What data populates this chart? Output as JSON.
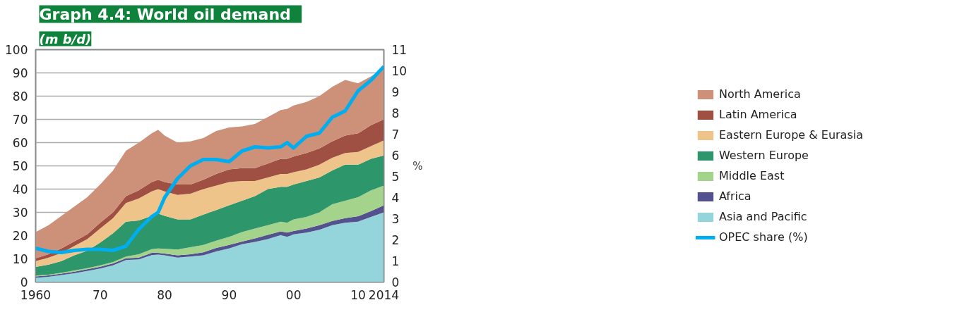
{
  "chart_data": {
    "type": "area",
    "stacked": true,
    "title": "Graph 4.4:   World oil demand",
    "subtitle": "(m b/d)",
    "y2label": "%",
    "x": [
      1960,
      1962,
      1964,
      1966,
      1968,
      1970,
      1972,
      1974,
      1976,
      1978,
      1979,
      1980,
      1982,
      1984,
      1986,
      1988,
      1990,
      1992,
      1994,
      1996,
      1998,
      1999,
      2000,
      2002,
      2004,
      2006,
      2008,
      2010,
      2012,
      2014
    ],
    "series": [
      {
        "name": "Asia and Pacific",
        "color": "#94d5db",
        "values": [
          1.8,
          2.3,
          3.0,
          3.8,
          4.8,
          5.8,
          7.2,
          9.5,
          9.8,
          11.6,
          11.8,
          11.5,
          10.5,
          11.0,
          11.5,
          13.2,
          14.5,
          16.3,
          17.3,
          18.5,
          20.2,
          19.5,
          20.5,
          21.3,
          22.5,
          24.5,
          25.5,
          26.0,
          28.0,
          30.0
        ]
      },
      {
        "name": "Africa",
        "color": "#54528e",
        "values": [
          0.6,
          0.6,
          0.6,
          0.7,
          0.7,
          0.8,
          0.8,
          0.7,
          0.7,
          1.0,
          0.8,
          0.8,
          1.0,
          1.0,
          1.3,
          1.5,
          1.5,
          1.1,
          1.5,
          1.8,
          1.6,
          1.8,
          1.5,
          1.7,
          2.0,
          1.8,
          2.0,
          2.3,
          2.5,
          3.0
        ]
      },
      {
        "name": "Middle East",
        "color": "#a4d48b",
        "values": [
          0.4,
          0.3,
          0.4,
          0.5,
          0.5,
          0.6,
          0.6,
          0.8,
          1.5,
          1.6,
          1.9,
          2.0,
          2.5,
          3.0,
          3.2,
          3.1,
          3.5,
          4.1,
          4.2,
          4.2,
          4.2,
          4.2,
          5.0,
          5.0,
          5.5,
          7.2,
          7.5,
          8.2,
          9.0,
          8.5
        ]
      },
      {
        "name": "Western Europe",
        "color": "#2e966b",
        "values": [
          3.7,
          4.3,
          5.0,
          6.5,
          7.5,
          9.8,
          12.4,
          15.0,
          14.5,
          14.3,
          15.0,
          14.2,
          13.0,
          12.0,
          13.0,
          13.2,
          13.5,
          13.5,
          14.0,
          15.5,
          15.0,
          15.5,
          15.0,
          15.5,
          15.0,
          14.5,
          15.5,
          14.0,
          13.5,
          13.0
        ]
      },
      {
        "name": "Eastern Europe & Eurasia",
        "color": "#eec48b",
        "values": [
          2.5,
          3.0,
          3.5,
          4.0,
          5.0,
          6.0,
          6.5,
          8.0,
          9.5,
          10.5,
          10.5,
          10.5,
          10.5,
          11.0,
          11.0,
          10.5,
          10.0,
          8.5,
          6.5,
          5.0,
          5.5,
          5.5,
          5.3,
          5.0,
          5.5,
          5.5,
          5.0,
          5.5,
          5.5,
          6.5
        ]
      },
      {
        "name": "Latin America",
        "color": "#a04f43",
        "values": [
          1.2,
          1.5,
          2.0,
          2.0,
          2.0,
          2.5,
          2.5,
          3.0,
          3.5,
          4.0,
          4.0,
          4.0,
          4.5,
          4.0,
          4.0,
          5.0,
          5.5,
          5.5,
          5.5,
          6.0,
          6.5,
          6.5,
          6.7,
          7.0,
          7.0,
          7.0,
          7.5,
          8.0,
          9.0,
          9.0
        ]
      },
      {
        "name": "North America",
        "color": "#cd917a",
        "values": [
          11.3,
          12.5,
          14.0,
          15.0,
          16.0,
          16.5,
          18.0,
          19.5,
          20.5,
          21.0,
          21.5,
          20.0,
          18.0,
          18.5,
          18.0,
          18.5,
          18.0,
          18.0,
          19.0,
          20.0,
          21.0,
          21.5,
          22.0,
          22.0,
          22.5,
          23.5,
          24.0,
          21.5,
          21.0,
          22.0
        ]
      },
      {
        "name": "OPEC share (%)",
        "type": "line",
        "axis": "y2",
        "color": "#00aeef",
        "values": [
          1.6,
          1.45,
          1.4,
          1.5,
          1.55,
          1.55,
          1.5,
          1.7,
          2.5,
          3.1,
          3.3,
          4.0,
          4.9,
          5.5,
          5.8,
          5.8,
          5.7,
          6.2,
          6.4,
          6.35,
          6.4,
          6.6,
          6.35,
          6.9,
          7.05,
          7.8,
          8.1,
          9.05,
          9.55,
          10.2
        ]
      }
    ],
    "xlim": [
      1960,
      2014
    ],
    "xticks": [
      {
        "value": 1960,
        "label": "1960"
      },
      {
        "value": 1970,
        "label": "70"
      },
      {
        "value": 1980,
        "label": "80"
      },
      {
        "value": 1990,
        "label": "90"
      },
      {
        "value": 2000,
        "label": "00"
      },
      {
        "value": 2010,
        "label": "10"
      },
      {
        "value": 2014,
        "label": "2014"
      }
    ],
    "ylim": [
      0,
      100
    ],
    "yticks": [
      0,
      10,
      20,
      30,
      40,
      50,
      60,
      70,
      80,
      90,
      100
    ],
    "y2lim": [
      0,
      11
    ],
    "y2ticks": [
      0,
      1,
      2,
      3,
      4,
      5,
      6,
      7,
      8,
      9,
      10,
      11
    ],
    "grid": "y",
    "legend": "right"
  }
}
